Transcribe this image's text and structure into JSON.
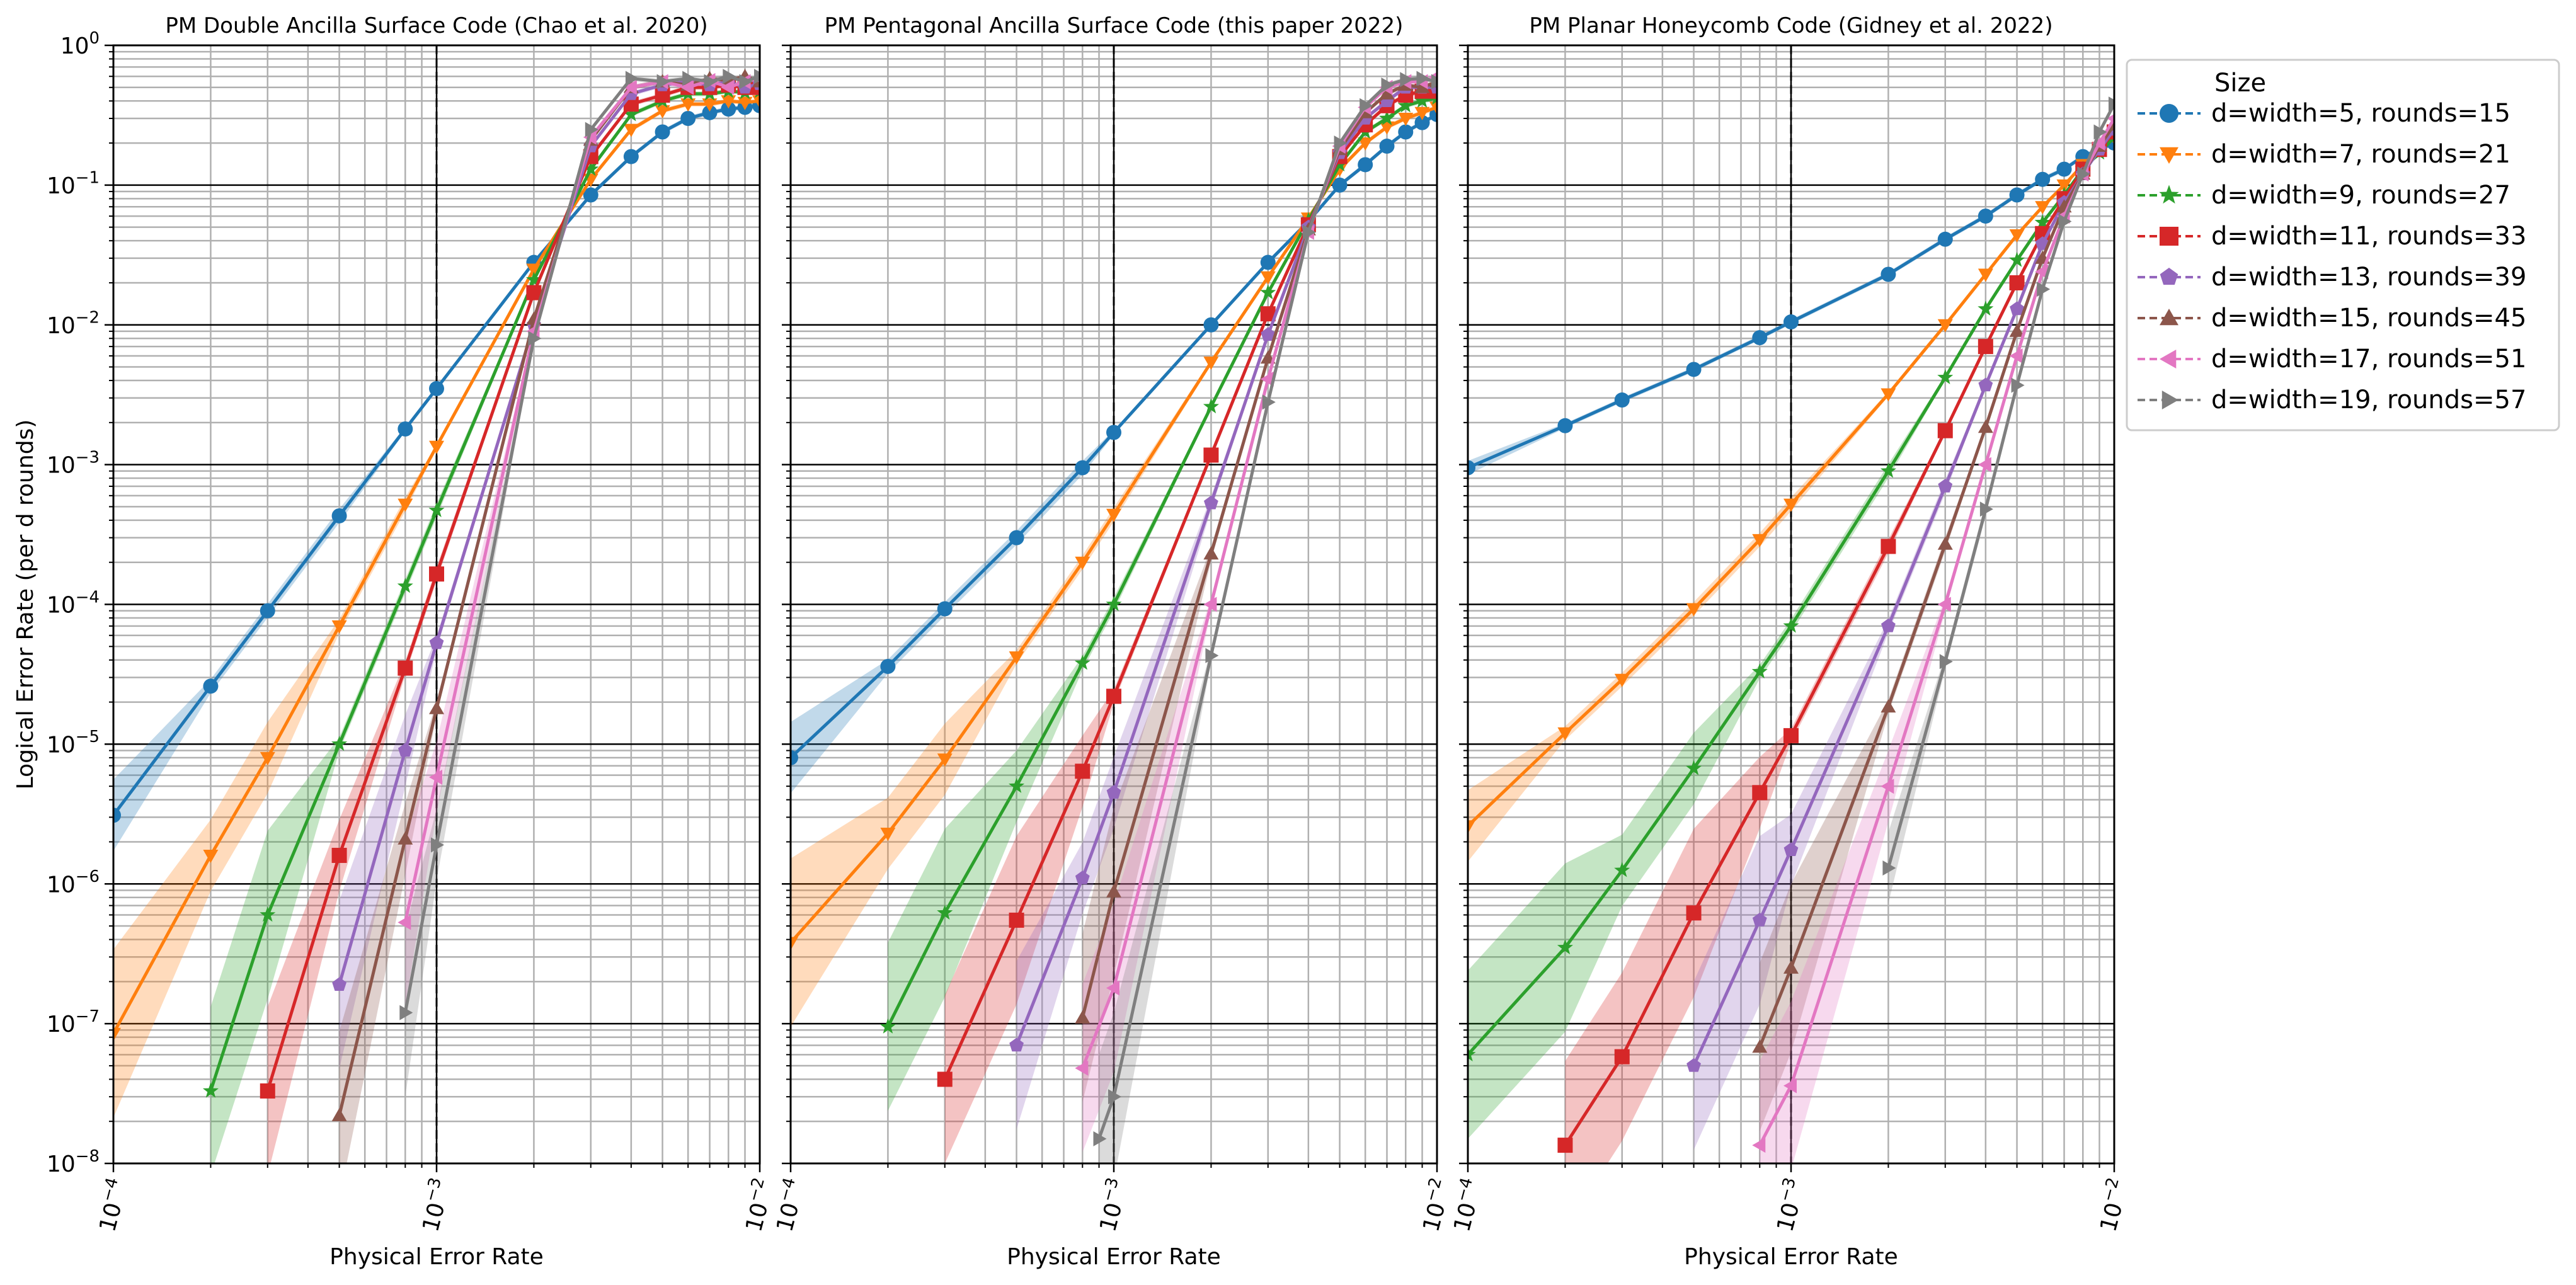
{
  "chart_data": [
    {
      "type": "line",
      "title": "PM Double Ancilla Surface Code (Chao et al. 2020)",
      "xlabel": "Physical Error Rate",
      "ylabel": "Logical Error Rate (per d rounds)",
      "xscale": "log",
      "yscale": "log",
      "xlim": [
        0.0001,
        0.01
      ],
      "ylim": [
        1e-08,
        1
      ],
      "grid": true,
      "series": [
        {
          "name": "d=width=5, rounds=15",
          "x": [
            0.0001,
            0.0002,
            0.0003,
            0.0005,
            0.0008,
            0.001,
            0.002,
            0.003,
            0.004,
            0.005,
            0.006,
            0.007,
            0.008,
            0.009,
            0.01
          ],
          "y": [
            3.1e-06,
            2.6e-05,
            9e-05,
            0.00043,
            0.0018,
            0.0035,
            0.028,
            0.085,
            0.16,
            0.24,
            0.3,
            0.33,
            0.35,
            0.36,
            0.37
          ]
        },
        {
          "name": "d=width=7, rounds=21",
          "x": [
            0.0001,
            0.0002,
            0.0003,
            0.0005,
            0.0008,
            0.001,
            0.002,
            0.003,
            0.004,
            0.005,
            0.006,
            0.007,
            0.008,
            0.009,
            0.01
          ],
          "y": [
            8.5e-08,
            1.6e-06,
            8e-06,
            7e-05,
            0.00052,
            0.00135,
            0.025,
            0.11,
            0.25,
            0.34,
            0.38,
            0.38,
            0.4,
            0.39,
            0.4
          ]
        },
        {
          "name": "d=width=9, rounds=27",
          "x": [
            0.0002,
            0.0003,
            0.0005,
            0.0008,
            0.001,
            0.002,
            0.003,
            0.004,
            0.005,
            0.006,
            0.007,
            0.008,
            0.009,
            0.01
          ],
          "y": [
            3.3e-08,
            6e-07,
            1e-05,
            0.000135,
            0.00047,
            0.021,
            0.13,
            0.32,
            0.4,
            0.45,
            0.45,
            0.47,
            0.46,
            0.47
          ]
        },
        {
          "name": "d=width=11, rounds=33",
          "x": [
            0.0003,
            0.0005,
            0.0008,
            0.001,
            0.002,
            0.003,
            0.004,
            0.005,
            0.006,
            0.007,
            0.008,
            0.009,
            0.01
          ],
          "y": [
            3.3e-08,
            1.6e-06,
            3.5e-05,
            0.000165,
            0.017,
            0.16,
            0.38,
            0.44,
            0.5,
            0.5,
            0.52,
            0.5,
            0.5
          ]
        },
        {
          "name": "d=width=13, rounds=39",
          "x": [
            0.0005,
            0.0008,
            0.001,
            0.002,
            0.003,
            0.004,
            0.005,
            0.006,
            0.007,
            0.008,
            0.009,
            0.01
          ],
          "y": [
            1.9e-07,
            9e-06,
            5.3e-05,
            0.01,
            0.19,
            0.45,
            0.52,
            0.55,
            0.52,
            0.55,
            0.5,
            0.53
          ]
        },
        {
          "name": "d=width=15, rounds=45",
          "x": [
            0.0005,
            0.0008,
            0.001,
            0.002,
            0.003,
            0.004,
            0.005,
            0.006,
            0.007,
            0.008,
            0.009,
            0.01
          ],
          "y": [
            2.2e-08,
            2.1e-06,
            1.8e-05,
            0.011,
            0.21,
            0.5,
            0.55,
            0.52,
            0.58,
            0.56,
            0.6,
            0.55
          ]
        },
        {
          "name": "d=width=17, rounds=51",
          "x": [
            0.0008,
            0.001,
            0.002,
            0.003,
            0.004,
            0.005,
            0.006,
            0.007,
            0.008,
            0.009,
            0.01
          ],
          "y": [
            5.3e-07,
            5.8e-06,
            0.009,
            0.22,
            0.5,
            0.55,
            0.5,
            0.56,
            0.5,
            0.55,
            0.58
          ]
        },
        {
          "name": "d=width=19, rounds=57",
          "x": [
            0.0008,
            0.001,
            0.002,
            0.003,
            0.004,
            0.005,
            0.006,
            0.007,
            0.008,
            0.009,
            0.01
          ],
          "y": [
            1.2e-07,
            1.9e-06,
            0.008,
            0.25,
            0.58,
            0.55,
            0.58,
            0.55,
            0.6,
            0.55,
            0.6
          ]
        }
      ]
    },
    {
      "type": "line",
      "title": "PM Pentagonal Ancilla Surface Code (this paper 2022)",
      "xlabel": "Physical Error Rate",
      "ylabel": "",
      "xscale": "log",
      "yscale": "log",
      "xlim": [
        0.0001,
        0.01
      ],
      "ylim": [
        1e-08,
        1
      ],
      "grid": true,
      "series": [
        {
          "name": "d=width=5, rounds=15",
          "x": [
            0.0001,
            0.0002,
            0.0003,
            0.0005,
            0.0008,
            0.001,
            0.002,
            0.003,
            0.004,
            0.005,
            0.006,
            0.007,
            0.008,
            0.009,
            0.01
          ],
          "y": [
            8e-06,
            3.6e-05,
            9.3e-05,
            0.0003,
            0.00095,
            0.0017,
            0.01,
            0.028,
            0.055,
            0.1,
            0.14,
            0.19,
            0.24,
            0.28,
            0.32
          ]
        },
        {
          "name": "d=width=7, rounds=21",
          "x": [
            0.0001,
            0.0002,
            0.0003,
            0.0005,
            0.0008,
            0.001,
            0.002,
            0.003,
            0.004,
            0.005,
            0.006,
            0.007,
            0.008,
            0.009,
            0.01
          ],
          "y": [
            3.8e-07,
            2.3e-06,
            7.8e-06,
            4.2e-05,
            0.0002,
            0.00044,
            0.0054,
            0.022,
            0.058,
            0.13,
            0.2,
            0.26,
            0.3,
            0.33,
            0.36
          ]
        },
        {
          "name": "d=width=9, rounds=27",
          "x": [
            0.0002,
            0.0003,
            0.0005,
            0.0008,
            0.001,
            0.002,
            0.003,
            0.004,
            0.005,
            0.006,
            0.007,
            0.008,
            0.009,
            0.01
          ],
          "y": [
            9.5e-08,
            6.2e-07,
            5e-06,
            3.8e-05,
            0.0001,
            0.0026,
            0.017,
            0.056,
            0.14,
            0.24,
            0.3,
            0.37,
            0.4,
            0.42
          ]
        },
        {
          "name": "d=width=11, rounds=33",
          "x": [
            0.0003,
            0.0005,
            0.0008,
            0.001,
            0.002,
            0.003,
            0.004,
            0.005,
            0.006,
            0.007,
            0.008,
            0.009,
            0.01
          ],
          "y": [
            4e-08,
            5.5e-07,
            6.4e-06,
            2.2e-05,
            0.00117,
            0.012,
            0.052,
            0.16,
            0.27,
            0.37,
            0.44,
            0.47,
            0.47
          ]
        },
        {
          "name": "d=width=13, rounds=39",
          "x": [
            0.0005,
            0.0008,
            0.001,
            0.002,
            0.003,
            0.004,
            0.005,
            0.006,
            0.007,
            0.008,
            0.009,
            0.01
          ],
          "y": [
            7e-08,
            1.1e-06,
            4.5e-06,
            0.00053,
            0.0085,
            0.05,
            0.17,
            0.3,
            0.4,
            0.5,
            0.5,
            0.5
          ]
        },
        {
          "name": "d=width=15, rounds=45",
          "x": [
            0.0008,
            0.001,
            0.002,
            0.003,
            0.004,
            0.005,
            0.006,
            0.007,
            0.008,
            0.009,
            0.01
          ],
          "y": [
            1.1e-07,
            8.8e-07,
            0.00023,
            0.0058,
            0.048,
            0.18,
            0.33,
            0.45,
            0.52,
            0.5,
            0.55
          ]
        },
        {
          "name": "d=width=17, rounds=51",
          "x": [
            0.0008,
            0.001,
            0.002,
            0.003,
            0.004,
            0.005,
            0.006,
            0.007,
            0.008,
            0.009,
            0.01
          ],
          "y": [
            4.8e-08,
            1.8e-07,
            0.0001,
            0.0041,
            0.046,
            0.19,
            0.36,
            0.5,
            0.55,
            0.55,
            0.6
          ]
        },
        {
          "name": "d=width=19, rounds=57",
          "x": [
            0.0009,
            0.001,
            0.002,
            0.003,
            0.004,
            0.005,
            0.006,
            0.007,
            0.008,
            0.009,
            0.01
          ],
          "y": [
            1.5e-08,
            3e-08,
            4.3e-05,
            0.0028,
            0.046,
            0.2,
            0.37,
            0.52,
            0.57,
            0.58,
            0.55
          ]
        }
      ]
    },
    {
      "type": "line",
      "title": "PM Planar Honeycomb Code (Gidney et al. 2022)",
      "xlabel": "Physical Error Rate",
      "ylabel": "",
      "xscale": "log",
      "yscale": "log",
      "xlim": [
        0.0001,
        0.01
      ],
      "ylim": [
        1e-08,
        1
      ],
      "grid": true,
      "series": [
        {
          "name": "d=width=5, rounds=15",
          "x": [
            0.0001,
            0.0002,
            0.0003,
            0.0005,
            0.0008,
            0.001,
            0.002,
            0.003,
            0.004,
            0.005,
            0.006,
            0.007,
            0.008,
            0.009,
            0.01
          ],
          "y": [
            0.00095,
            0.0019,
            0.0029,
            0.0048,
            0.0081,
            0.0105,
            0.023,
            0.041,
            0.06,
            0.085,
            0.11,
            0.13,
            0.16,
            0.18,
            0.2
          ]
        },
        {
          "name": "d=width=7, rounds=21",
          "x": [
            0.0001,
            0.0002,
            0.0003,
            0.0005,
            0.0008,
            0.001,
            0.002,
            0.003,
            0.004,
            0.005,
            0.006,
            0.007,
            0.008,
            0.009,
            0.01
          ],
          "y": [
            2.6e-06,
            1.2e-05,
            2.9e-05,
            9.3e-05,
            0.00029,
            0.00052,
            0.0032,
            0.01,
            0.023,
            0.044,
            0.07,
            0.1,
            0.14,
            0.18,
            0.22
          ]
        },
        {
          "name": "d=width=9, rounds=27",
          "x": [
            0.0001,
            0.0002,
            0.0003,
            0.0005,
            0.0008,
            0.001,
            0.002,
            0.003,
            0.004,
            0.005,
            0.006,
            0.007,
            0.008,
            0.009,
            0.01
          ],
          "y": [
            6e-08,
            3.5e-07,
            1.25e-06,
            6.7e-06,
            3.3e-05,
            7e-05,
            0.0009,
            0.0042,
            0.013,
            0.029,
            0.054,
            0.085,
            0.13,
            0.17,
            0.22
          ]
        },
        {
          "name": "d=width=11, rounds=33",
          "x": [
            0.0002,
            0.0003,
            0.0005,
            0.0008,
            0.001,
            0.002,
            0.003,
            0.004,
            0.005,
            0.006,
            0.007,
            0.008,
            0.009,
            0.01
          ],
          "y": [
            1.35e-08,
            5.8e-08,
            6.2e-07,
            4.5e-06,
            1.15e-05,
            0.00026,
            0.00175,
            0.007,
            0.02,
            0.045,
            0.08,
            0.13,
            0.18,
            0.24
          ]
        },
        {
          "name": "d=width=13, rounds=39",
          "x": [
            0.0005,
            0.0008,
            0.001,
            0.002,
            0.003,
            0.004,
            0.005,
            0.006,
            0.007,
            0.008,
            0.009,
            0.01
          ],
          "y": [
            5e-08,
            5.5e-07,
            1.75e-06,
            7e-05,
            0.0007,
            0.0037,
            0.013,
            0.038,
            0.075,
            0.12,
            0.18,
            0.25
          ]
        },
        {
          "name": "d=width=15, rounds=45",
          "x": [
            0.0008,
            0.001,
            0.002,
            0.003,
            0.004,
            0.005,
            0.006,
            0.007,
            0.008,
            0.009,
            0.01
          ],
          "y": [
            6.8e-08,
            2.5e-07,
            1.85e-05,
            0.00027,
            0.00185,
            0.009,
            0.03,
            0.07,
            0.12,
            0.19,
            0.27
          ]
        },
        {
          "name": "d=width=17, rounds=51",
          "x": [
            0.0008,
            0.001,
            0.002,
            0.003,
            0.004,
            0.005,
            0.006,
            0.007,
            0.008,
            0.009,
            0.01
          ],
          "y": [
            1.35e-08,
            3.6e-08,
            5e-06,
            0.0001,
            0.001,
            0.006,
            0.024,
            0.06,
            0.12,
            0.2,
            0.3
          ]
        },
        {
          "name": "d=width=19, rounds=57",
          "x": [
            0.002,
            0.003,
            0.004,
            0.005,
            0.006,
            0.007,
            0.008,
            0.009,
            0.01
          ],
          "y": [
            1.3e-06,
            3.9e-05,
            0.00048,
            0.0037,
            0.018,
            0.055,
            0.12,
            0.24,
            0.38
          ]
        }
      ]
    }
  ],
  "legend": {
    "title": "Size",
    "placement": "right of last panel, top",
    "entries": [
      {
        "label": "d=width=5, rounds=15",
        "color": "#1f77b4",
        "marker": "circle"
      },
      {
        "label": "d=width=7, rounds=21",
        "color": "#ff7f0e",
        "marker": "triangle-down"
      },
      {
        "label": "d=width=9, rounds=27",
        "color": "#2ca02c",
        "marker": "star"
      },
      {
        "label": "d=width=11, rounds=33",
        "color": "#d62728",
        "marker": "square"
      },
      {
        "label": "d=width=13, rounds=39",
        "color": "#9467bd",
        "marker": "pentagon"
      },
      {
        "label": "d=width=15, rounds=45",
        "color": "#8c564b",
        "marker": "triangle-up"
      },
      {
        "label": "d=width=17, rounds=51",
        "color": "#e377c2",
        "marker": "triangle-left"
      },
      {
        "label": "d=width=19, rounds=57",
        "color": "#7f7f7f",
        "marker": "triangle-right"
      }
    ]
  },
  "reference_line": {
    "x": 0.001,
    "style": "dashed black vertical"
  },
  "axis_ticks": {
    "x": [
      "10^−4",
      "10^−3",
      "10^−2"
    ],
    "y": [
      "10^−8",
      "10^−7",
      "10^−6",
      "10^−5",
      "10^−4",
      "10^−3",
      "10^−2",
      "10^−1",
      "10^0"
    ]
  }
}
